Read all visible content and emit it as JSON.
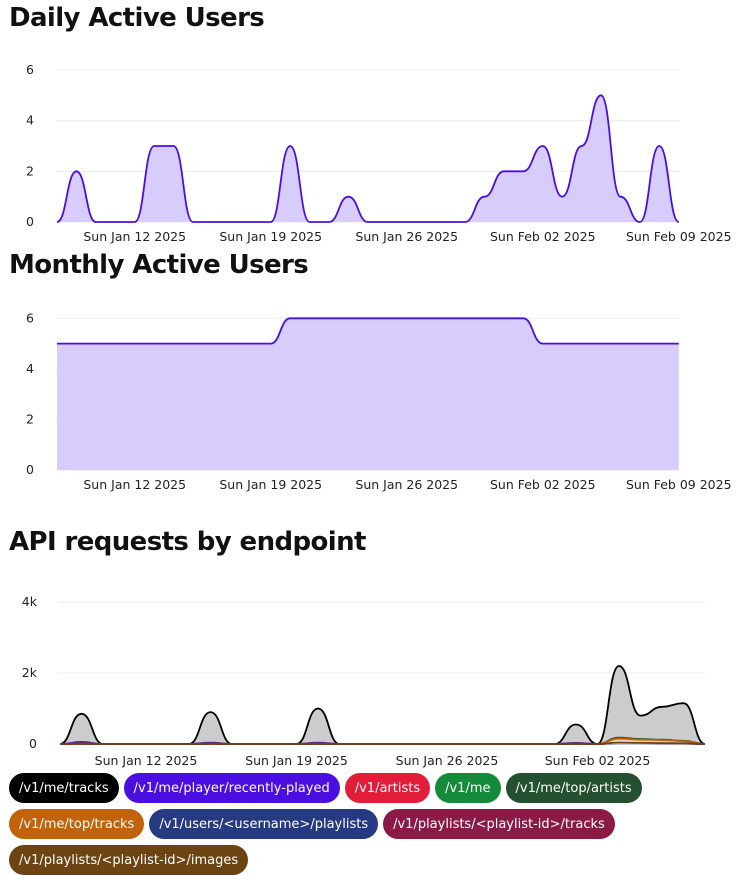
{
  "charts": {
    "dau_title": "Daily Active Users",
    "mau_title": "Monthly Active Users",
    "api_title": "API requests by endpoint"
  },
  "legend": [
    {
      "label": "/v1/me/tracks",
      "color": "#000000"
    },
    {
      "label": "/v1/me/player/recently-played",
      "color": "#4a0fe0"
    },
    {
      "label": "/v1/artists",
      "color": "#e11d3a"
    },
    {
      "label": "/v1/me",
      "color": "#168a3b"
    },
    {
      "label": "/v1/me/top/artists",
      "color": "#24502f"
    },
    {
      "label": "/v1/me/top/tracks",
      "color": "#c2620a"
    },
    {
      "label": "/v1/users/<username>/playlists",
      "color": "#263a82"
    },
    {
      "label": "/v1/playlists/<playlist-id>/tracks",
      "color": "#8b1a45"
    },
    {
      "label": "/v1/playlists/<playlist-id>/images",
      "color": "#6b4412"
    }
  ],
  "chart_data": [
    {
      "type": "area",
      "title": "Daily Active Users",
      "x": [
        "2025-01-08",
        "2025-01-09",
        "2025-01-10",
        "2025-01-11",
        "2025-01-12",
        "2025-01-13",
        "2025-01-14",
        "2025-01-15",
        "2025-01-16",
        "2025-01-17",
        "2025-01-18",
        "2025-01-19",
        "2025-01-20",
        "2025-01-21",
        "2025-01-22",
        "2025-01-23",
        "2025-01-24",
        "2025-01-25",
        "2025-01-26",
        "2025-01-27",
        "2025-01-28",
        "2025-01-29",
        "2025-01-30",
        "2025-01-31",
        "2025-02-01",
        "2025-02-02",
        "2025-02-03",
        "2025-02-04",
        "2025-02-05",
        "2025-02-06",
        "2025-02-07",
        "2025-02-08",
        "2025-02-09"
      ],
      "values": [
        0,
        2,
        0,
        0,
        0,
        3,
        3,
        0,
        0,
        0,
        0,
        0,
        3,
        0,
        0,
        1,
        0,
        0,
        0,
        0,
        0,
        0,
        1,
        2,
        2,
        3,
        1,
        3,
        5,
        1,
        0,
        3,
        0
      ],
      "x_ticks": [
        "Sun Jan 12 2025",
        "Sun Jan 19 2025",
        "Sun Jan 26 2025",
        "Sun Feb 02 2025",
        "Sun Feb 09 2025"
      ],
      "ylim": [
        0,
        6
      ],
      "y_ticks": [
        "0",
        "2",
        "4",
        "6"
      ],
      "fill": "#d8ccfd",
      "line": "#4a0fe0",
      "grid": true
    },
    {
      "type": "area",
      "title": "Monthly Active Users",
      "x": [
        "2025-01-08",
        "2025-01-09",
        "2025-01-10",
        "2025-01-11",
        "2025-01-12",
        "2025-01-13",
        "2025-01-14",
        "2025-01-15",
        "2025-01-16",
        "2025-01-17",
        "2025-01-18",
        "2025-01-19",
        "2025-01-20",
        "2025-01-21",
        "2025-01-22",
        "2025-01-23",
        "2025-01-24",
        "2025-01-25",
        "2025-01-26",
        "2025-01-27",
        "2025-01-28",
        "2025-01-29",
        "2025-01-30",
        "2025-01-31",
        "2025-02-01",
        "2025-02-02",
        "2025-02-03",
        "2025-02-04",
        "2025-02-05",
        "2025-02-06",
        "2025-02-07",
        "2025-02-08",
        "2025-02-09"
      ],
      "values": [
        5,
        5,
        5,
        5,
        5,
        5,
        5,
        5,
        5,
        5,
        5,
        5,
        6,
        6,
        6,
        6,
        6,
        6,
        6,
        6,
        6,
        6,
        6,
        6,
        6,
        5,
        5,
        5,
        5,
        5,
        5,
        5,
        5
      ],
      "x_ticks": [
        "Sun Jan 12 2025",
        "Sun Jan 19 2025",
        "Sun Jan 26 2025",
        "Sun Feb 02 2025",
        "Sun Feb 09 2025"
      ],
      "ylim": [
        0,
        7
      ],
      "y_ticks": [
        "0",
        "2",
        "4",
        "6"
      ],
      "fill": "#d8ccfd",
      "line": "#4a0fe0",
      "grid": true
    },
    {
      "type": "area",
      "title": "API requests by endpoint",
      "x": [
        "2025-01-08",
        "2025-01-09",
        "2025-01-10",
        "2025-01-11",
        "2025-01-12",
        "2025-01-13",
        "2025-01-14",
        "2025-01-15",
        "2025-01-16",
        "2025-01-17",
        "2025-01-18",
        "2025-01-19",
        "2025-01-20",
        "2025-01-21",
        "2025-01-22",
        "2025-01-23",
        "2025-01-24",
        "2025-01-25",
        "2025-01-26",
        "2025-01-27",
        "2025-01-28",
        "2025-01-29",
        "2025-01-30",
        "2025-01-31",
        "2025-02-01",
        "2025-02-02",
        "2025-02-03",
        "2025-02-04",
        "2025-02-05",
        "2025-02-06",
        "2025-02-07"
      ],
      "x_ticks": [
        "Sun Jan 12 2025",
        "Sun Jan 19 2025",
        "Sun Jan 26 2025",
        "Sun Feb 02 2025"
      ],
      "ylim": [
        0,
        4200
      ],
      "y_ticks": [
        "0",
        "2k",
        "4k"
      ],
      "grid": true,
      "series": [
        {
          "name": "/v1/me/tracks",
          "values": [
            0,
            850,
            0,
            0,
            0,
            0,
            0,
            900,
            0,
            0,
            0,
            0,
            1000,
            0,
            0,
            0,
            0,
            0,
            0,
            0,
            0,
            0,
            0,
            0,
            550,
            0,
            2200,
            800,
            1050,
            1150,
            0
          ],
          "line": "#000000",
          "fill": "#cccccc"
        },
        {
          "name": "/v1/me/player/recently-played",
          "values": [
            0,
            60,
            0,
            0,
            0,
            0,
            0,
            40,
            0,
            0,
            0,
            0,
            40,
            0,
            0,
            0,
            0,
            0,
            0,
            0,
            0,
            0,
            0,
            0,
            30,
            0,
            60,
            50,
            40,
            40,
            0
          ],
          "line": "#4a0fe0",
          "fill": "#d8ccfd"
        },
        {
          "name": "/v1/artists",
          "values": [
            0,
            20,
            0,
            0,
            0,
            0,
            0,
            15,
            0,
            0,
            0,
            0,
            15,
            0,
            0,
            0,
            0,
            0,
            0,
            0,
            0,
            0,
            0,
            0,
            10,
            0,
            150,
            100,
            90,
            80,
            0
          ],
          "line": "#e11d3a",
          "fill": "#f7c6ce"
        },
        {
          "name": "/v1/me",
          "values": [
            0,
            10,
            0,
            0,
            0,
            0,
            0,
            10,
            0,
            0,
            0,
            0,
            10,
            0,
            0,
            0,
            0,
            0,
            0,
            0,
            0,
            0,
            0,
            0,
            10,
            0,
            50,
            40,
            40,
            30,
            0
          ],
          "line": "#168a3b",
          "fill": "#c6ead2"
        },
        {
          "name": "/v1/me/top/artists",
          "values": [
            0,
            15,
            0,
            0,
            0,
            0,
            0,
            10,
            0,
            0,
            0,
            0,
            10,
            0,
            0,
            0,
            0,
            0,
            0,
            0,
            0,
            0,
            0,
            0,
            10,
            0,
            180,
            140,
            120,
            90,
            0
          ],
          "line": "#24502f",
          "fill": "#c9d6cb"
        },
        {
          "name": "/v1/me/top/tracks",
          "values": [
            0,
            15,
            0,
            0,
            0,
            0,
            0,
            10,
            0,
            0,
            0,
            0,
            10,
            0,
            0,
            0,
            0,
            0,
            0,
            0,
            0,
            0,
            0,
            0,
            10,
            0,
            150,
            120,
            110,
            80,
            0
          ],
          "line": "#c2620a",
          "fill": "#f2d6bd"
        },
        {
          "name": "/v1/users/<username>/playlists",
          "values": [
            0,
            5,
            0,
            0,
            0,
            0,
            0,
            5,
            0,
            0,
            0,
            0,
            5,
            0,
            0,
            0,
            0,
            0,
            0,
            0,
            0,
            0,
            0,
            0,
            5,
            0,
            20,
            20,
            15,
            10,
            0
          ],
          "line": "#263a82",
          "fill": "#c8cfe6"
        },
        {
          "name": "/v1/playlists/<playlist-id>/tracks",
          "values": [
            0,
            5,
            0,
            0,
            0,
            0,
            0,
            5,
            0,
            0,
            0,
            0,
            5,
            0,
            0,
            0,
            0,
            0,
            0,
            0,
            0,
            0,
            0,
            0,
            5,
            0,
            30,
            25,
            20,
            15,
            0
          ],
          "line": "#8b1a45",
          "fill": "#e6c6d2"
        },
        {
          "name": "/v1/playlists/<playlist-id>/images",
          "values": [
            0,
            5,
            0,
            0,
            0,
            0,
            0,
            5,
            0,
            0,
            0,
            0,
            5,
            0,
            0,
            0,
            0,
            0,
            0,
            0,
            0,
            0,
            0,
            0,
            5,
            0,
            40,
            30,
            25,
            20,
            0
          ],
          "line": "#6b4412",
          "fill": "#e2d3bf"
        }
      ]
    }
  ]
}
